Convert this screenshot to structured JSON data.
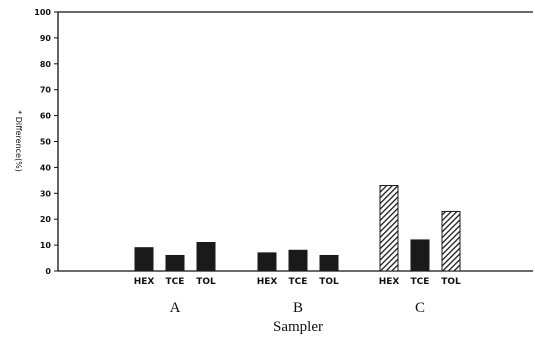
{
  "chart_data": {
    "type": "bar",
    "xlabel": "Sampler",
    "ylabel": "* Difference(%)",
    "ylim": [
      0,
      100
    ],
    "yticks": [
      "0",
      "10",
      "20",
      "30",
      "40",
      "50",
      "60",
      "70",
      "80",
      "90",
      "100"
    ],
    "groups": [
      "A",
      "B",
      "C"
    ],
    "series": [
      {
        "name": "HEX",
        "values": [
          9,
          7,
          33
        ],
        "pattern": "solid"
      },
      {
        "name": "TCE",
        "values": [
          6,
          8,
          12
        ],
        "pattern": "solid"
      },
      {
        "name": "TOL",
        "values": [
          11,
          6,
          23
        ],
        "pattern": "solid"
      }
    ],
    "hatched_bars": [
      [
        2,
        0
      ],
      [
        2,
        2
      ]
    ],
    "grid": false,
    "legend": "none",
    "colors": {
      "bar": "#1a1a1a",
      "axis": "#111111",
      "background": "#ffffff"
    }
  }
}
